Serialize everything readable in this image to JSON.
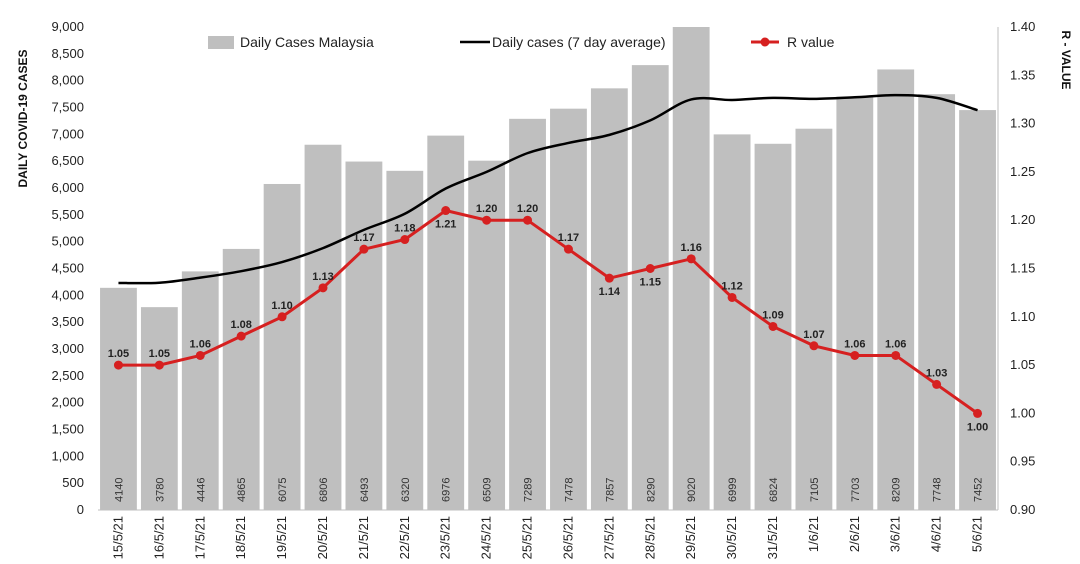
{
  "chart_data": {
    "type": "bar",
    "categories": [
      "15/5/21",
      "16/5/21",
      "17/5/21",
      "18/5/21",
      "19/5/21",
      "20/5/21",
      "21/5/21",
      "22/5/21",
      "23/5/21",
      "24/5/21",
      "25/5/21",
      "26/5/21",
      "27/5/21",
      "28/5/21",
      "29/5/21",
      "30/5/21",
      "31/5/21",
      "1/6/21",
      "2/6/21",
      "3/6/21",
      "4/6/21",
      "5/6/21"
    ],
    "series": [
      {
        "name": "Daily Cases Malaysia",
        "type": "bar",
        "axis": "left",
        "color": "#bfbfbf",
        "values": [
          4140,
          3780,
          4446,
          4865,
          6075,
          6806,
          6493,
          6320,
          6976,
          6509,
          7289,
          7478,
          7857,
          8290,
          9020,
          6999,
          6824,
          7105,
          7703,
          8209,
          7748,
          7452
        ]
      },
      {
        "name": "Daily cases (7 day average)",
        "type": "line",
        "axis": "left",
        "color": "#000000",
        "values": [
          4230,
          4235,
          4330,
          4450,
          4620,
          4880,
          5220,
          5520,
          5990,
          6300,
          6650,
          6840,
          6990,
          7260,
          7650,
          7640,
          7680,
          7660,
          7690,
          7730,
          7680,
          7450
        ]
      },
      {
        "name": "R value",
        "type": "line",
        "axis": "right",
        "color": "#d62020",
        "values": [
          1.05,
          1.05,
          1.06,
          1.08,
          1.1,
          1.13,
          1.17,
          1.18,
          1.21,
          1.2,
          1.2,
          1.17,
          1.14,
          1.15,
          1.16,
          1.12,
          1.09,
          1.07,
          1.06,
          1.06,
          1.03,
          1.0
        ]
      }
    ],
    "ylabel": "DAILY COVID-19 CASES",
    "y2label": "R - VALUE",
    "ylim": [
      0,
      9000
    ],
    "yticks": [
      0,
      500,
      1000,
      1500,
      2000,
      2500,
      3000,
      3500,
      4000,
      4500,
      5000,
      5500,
      6000,
      6500,
      7000,
      7500,
      8000,
      8500,
      9000
    ],
    "y2lim": [
      0.9,
      1.4
    ],
    "y2ticks": [
      0.9,
      0.95,
      1.0,
      1.05,
      1.1,
      1.15,
      1.2,
      1.25,
      1.3,
      1.35,
      1.4
    ],
    "grid": false,
    "legend": "top"
  }
}
